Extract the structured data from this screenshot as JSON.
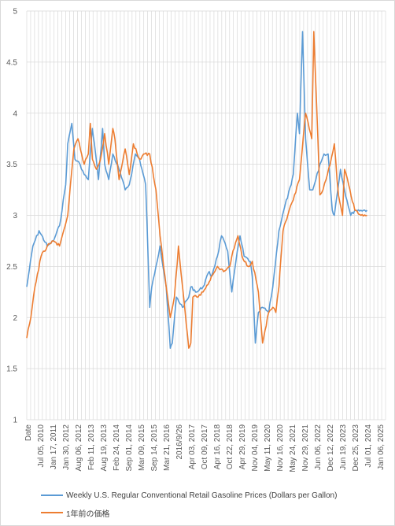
{
  "chart_data": {
    "type": "line",
    "title": "",
    "xlabel": "",
    "ylabel": "",
    "ylim": [
      1,
      5
    ],
    "yticks": [
      "1",
      "1.5",
      "2",
      "2.5",
      "3",
      "3.5",
      "4",
      "4.5",
      "5"
    ],
    "x_tick_labels": [
      "Date",
      "Jul 05, 2010",
      "Jan 17, 2011",
      "Jan 30, 2012",
      "Aug 06, 2012",
      "Feb 11, 2013",
      "Aug 19, 2013",
      "Feb 24, 2014",
      "Sep 01, 2014",
      "Mar 09, 2015",
      "Sep 14, 2015",
      "Mar 21, 2016",
      "2016/9/26",
      "Apr 03, 2017",
      "Oct 09, 2017",
      "Apr 16, 2018",
      "Oct 22, 2018",
      "Apr 29, 2019",
      "Nov 04, 2019",
      "May 11, 2020",
      "Nov 16, 2020",
      "May 24, 2021",
      "Nov 29, 2021",
      "Jun 06, 2022",
      "Dec 12, 2022",
      "Jun 19, 2023",
      "Dec 25, 2023",
      "Jul 01, 2024",
      "Jan 06, 2025"
    ],
    "grid": true,
    "legend_position": "bottom",
    "series": [
      {
        "name": "Weekly U.S. Regular Conventional Retail Gasoline Prices (Dollars per Gallon)",
        "color": "#5B9BD5",
        "x": [
          2009.0,
          2009.3,
          2009.6,
          2010.0,
          2010.3,
          2010.6,
          2010.9,
          2011.0,
          2011.2,
          2011.35,
          2011.6,
          2011.8,
          2012.0,
          2012.2,
          2012.3,
          2012.5,
          2012.7,
          2012.8,
          2013.0,
          2013.2,
          2013.5,
          2013.8,
          2014.0,
          2014.3,
          2014.5,
          2014.8,
          2015.0,
          2015.1,
          2015.3,
          2015.5,
          2015.8,
          2016.0,
          2016.1,
          2016.3,
          2016.6,
          2016.9,
          2017.0,
          2017.3,
          2017.6,
          2017.9,
          2018.0,
          2018.3,
          2018.5,
          2018.8,
          2019.0,
          2019.2,
          2019.4,
          2019.6,
          2019.9,
          2020.0,
          2020.15,
          2020.3,
          2020.5,
          2020.8,
          2021.0,
          2021.3,
          2021.6,
          2021.9,
          2022.0,
          2022.2,
          2022.3,
          2022.45,
          2022.6,
          2022.8,
          2022.95,
          2023.1,
          2023.3,
          2023.5,
          2023.7,
          2023.9,
          2024.0,
          2024.3,
          2024.5,
          2024.8,
          2025.0,
          2025.3,
          2025.6
        ],
        "y": [
          2.3,
          2.7,
          2.85,
          2.7,
          2.75,
          2.9,
          3.3,
          3.7,
          3.9,
          3.55,
          3.5,
          3.4,
          3.35,
          3.85,
          3.7,
          3.35,
          3.85,
          3.5,
          3.35,
          3.6,
          3.45,
          3.25,
          3.3,
          3.6,
          3.55,
          3.3,
          2.1,
          2.3,
          2.5,
          2.7,
          2.3,
          1.7,
          1.75,
          2.2,
          2.1,
          2.2,
          2.3,
          2.25,
          2.3,
          2.45,
          2.4,
          2.6,
          2.8,
          2.65,
          2.25,
          2.55,
          2.8,
          2.6,
          2.55,
          2.4,
          1.75,
          2.05,
          2.1,
          2.05,
          2.3,
          2.85,
          3.1,
          3.3,
          3.4,
          4.0,
          3.8,
          4.8,
          3.75,
          3.25,
          3.25,
          3.35,
          3.5,
          3.6,
          3.6,
          3.05,
          3.0,
          3.45,
          3.25,
          3.0,
          3.05,
          3.05,
          3.05
        ]
      },
      {
        "name": "1年前の価格",
        "color": "#ED7D31",
        "x": [
          2009.0,
          2009.2,
          2009.4,
          2009.7,
          2010.0,
          2010.3,
          2010.6,
          2010.8,
          2011.0,
          2011.3,
          2011.5,
          2011.8,
          2012.0,
          2012.1,
          2012.2,
          2012.4,
          2012.6,
          2012.8,
          2013.0,
          2013.2,
          2013.3,
          2013.5,
          2013.8,
          2014.0,
          2014.2,
          2014.5,
          2014.7,
          2015.0,
          2015.3,
          2015.5,
          2015.8,
          2016.0,
          2016.2,
          2016.4,
          2016.6,
          2016.9,
          2017.0,
          2017.1,
          2017.3,
          2017.6,
          2017.9,
          2018.0,
          2018.3,
          2018.6,
          2018.9,
          2019.0,
          2019.3,
          2019.5,
          2019.8,
          2020.0,
          2020.3,
          2020.5,
          2020.8,
          2021.0,
          2021.15,
          2021.3,
          2021.5,
          2021.8,
          2022.0,
          2022.3,
          2022.6,
          2022.9,
          2023.0,
          2023.2,
          2023.3,
          2023.45,
          2023.6,
          2023.8,
          2024.0,
          2024.2,
          2024.4,
          2024.5,
          2024.7,
          2025.0,
          2025.3,
          2025.6
        ],
        "y": [
          1.8,
          2.0,
          2.3,
          2.6,
          2.7,
          2.75,
          2.7,
          2.85,
          3.0,
          3.65,
          3.75,
          3.5,
          3.6,
          3.9,
          3.55,
          3.45,
          3.55,
          3.8,
          3.5,
          3.85,
          3.75,
          3.35,
          3.65,
          3.4,
          3.7,
          3.55,
          3.6,
          3.6,
          3.25,
          2.8,
          2.3,
          2.0,
          2.2,
          2.7,
          2.3,
          1.7,
          1.75,
          2.2,
          2.2,
          2.25,
          2.35,
          2.4,
          2.5,
          2.45,
          2.5,
          2.6,
          2.8,
          2.6,
          2.5,
          2.55,
          2.25,
          1.75,
          2.05,
          2.1,
          2.05,
          2.3,
          2.85,
          3.05,
          3.15,
          3.35,
          4.0,
          3.75,
          4.8,
          3.75,
          3.2,
          3.25,
          3.35,
          3.5,
          3.7,
          3.2,
          3.0,
          3.45,
          3.3,
          3.05,
          3.0,
          3.0
        ]
      }
    ]
  }
}
